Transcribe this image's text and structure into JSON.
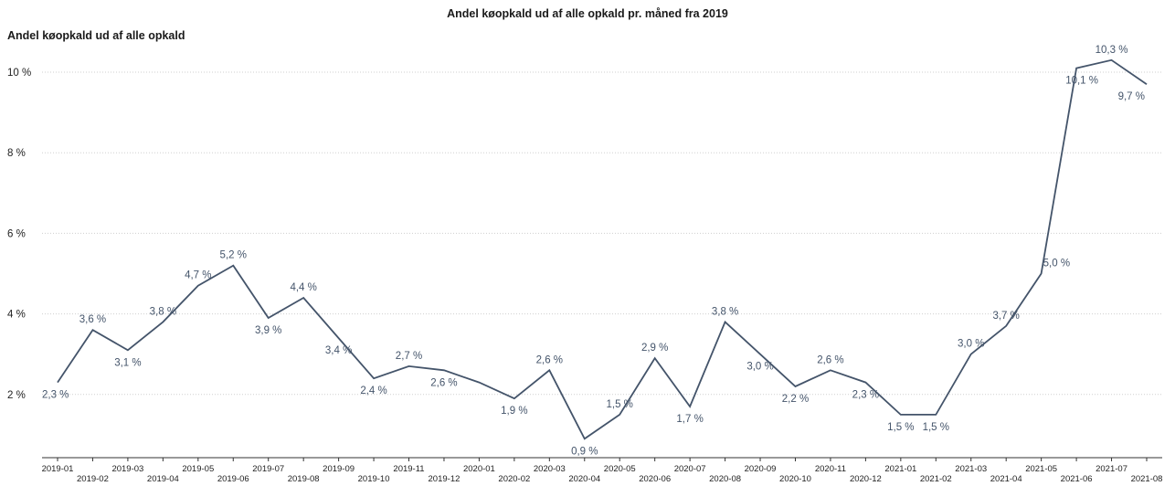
{
  "chart_data": {
    "type": "line",
    "title": "Andel køopkald ud af alle opkald pr. måned fra 2019",
    "ylabel": "Andel køopkald ud af alle opkald",
    "xlabel": "",
    "ylim": [
      0.5,
      10.9
    ],
    "yticks": [
      2,
      4,
      6,
      8,
      10
    ],
    "ytick_labels": [
      "2 %",
      "4 %",
      "6 %",
      "8 %",
      "10 %"
    ],
    "grid": true,
    "line_color": "#44546a",
    "categories": [
      "2019-01",
      "2019-02",
      "2019-03",
      "2019-04",
      "2019-05",
      "2019-06",
      "2019-07",
      "2019-08",
      "2019-09",
      "2019-10",
      "2019-11",
      "2019-12",
      "2020-01",
      "2020-02",
      "2020-03",
      "2020-04",
      "2020-05",
      "2020-06",
      "2020-07",
      "2020-08",
      "2020-09",
      "2020-10",
      "2020-11",
      "2020-12",
      "2021-01",
      "2021-02",
      "2021-03",
      "2021-04",
      "2021-05",
      "2021-06",
      "2021-07",
      "2021-08"
    ],
    "values": [
      2.3,
      3.6,
      3.1,
      3.8,
      4.7,
      5.2,
      3.9,
      4.4,
      3.4,
      2.4,
      2.7,
      2.6,
      2.3,
      1.9,
      2.6,
      0.9,
      1.5,
      2.9,
      1.7,
      3.8,
      3.0,
      2.2,
      2.6,
      2.3,
      1.5,
      1.5,
      3.0,
      3.7,
      5.0,
      10.1,
      10.3,
      9.7
    ],
    "data_labels": [
      "2,3 %",
      "3,6 %",
      "3,1 %",
      "3,8 %",
      "4,7 %",
      "5,2 %",
      "3,9 %",
      "4,4 %",
      "3,4 %",
      "2,4 %",
      "2,7 %",
      "2,6 %",
      "",
      "1,9 %",
      "2,6 %",
      "0,9 %",
      "1,5 %",
      "2,9 %",
      "1,7 %",
      "3,8 %",
      "3,0 %",
      "2,2 %",
      "2,6 %",
      "2,3 %",
      "1,5 %",
      "1,5 %",
      "3,0 %",
      "3,7 %",
      "5,0 %",
      "10,1 %",
      "10,3 %",
      "9,7 %"
    ]
  }
}
